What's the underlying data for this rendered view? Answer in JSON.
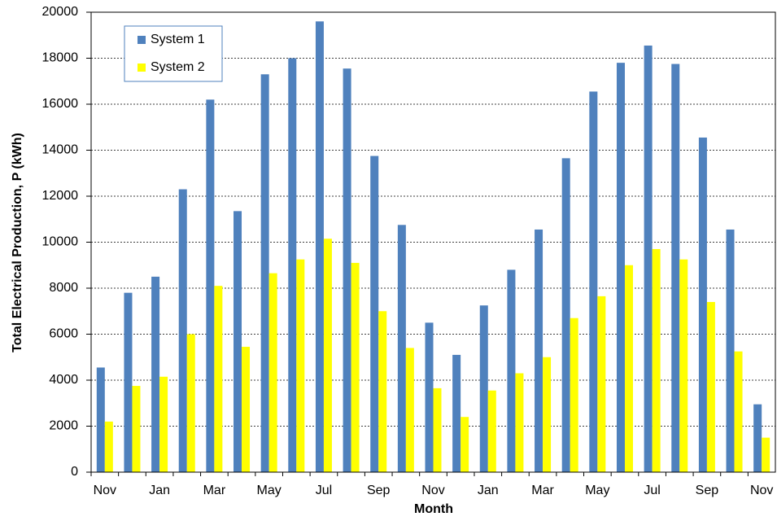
{
  "chart_data": {
    "type": "bar",
    "xlabel": "Month",
    "ylabel": "Total Electrical Production, P (kWh)",
    "categories": [
      "Nov",
      null,
      "Jan",
      null,
      "Mar",
      null,
      "May",
      null,
      "Jul",
      null,
      "Sep",
      null,
      "Nov",
      null,
      "Jan",
      null,
      "Mar",
      null,
      "May",
      null,
      "Jul",
      null,
      "Sep",
      null,
      "Nov"
    ],
    "series": [
      {
        "name": "System 1",
        "color": "#4f81bd",
        "values": [
          4550,
          7800,
          8500,
          12300,
          16200,
          11350,
          17300,
          18000,
          19600,
          17550,
          13750,
          10750,
          6500,
          5100,
          7250,
          8800,
          10550,
          13650,
          16550,
          17800,
          18550,
          17750,
          14550,
          10550,
          2950
        ]
      },
      {
        "name": "System 2",
        "color": "#ffff00",
        "values": [
          2200,
          3750,
          4150,
          6000,
          8100,
          5450,
          8650,
          9250,
          10150,
          9100,
          7000,
          5400,
          3650,
          2400,
          3550,
          4300,
          5000,
          6700,
          7650,
          9000,
          9700,
          9250,
          7400,
          5250,
          1500
        ]
      }
    ],
    "ylim": [
      0,
      20000
    ],
    "yticks": [
      0,
      2000,
      4000,
      6000,
      8000,
      10000,
      12000,
      14000,
      16000,
      18000,
      20000
    ],
    "grid": true,
    "legend": "upper left"
  }
}
